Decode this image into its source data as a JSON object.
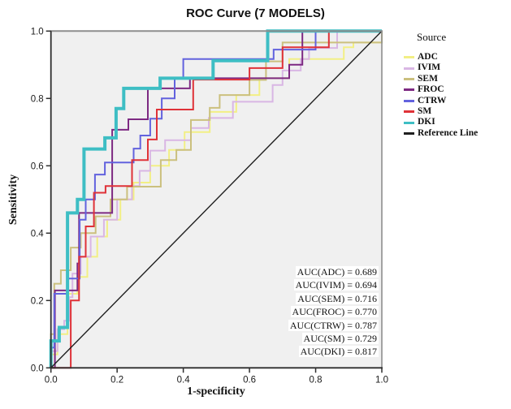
{
  "title": "ROC Curve (7 MODELS)",
  "axes": {
    "x_label": "1-specificity",
    "y_label": "Sensitivity",
    "x_ticks": [
      "0.0",
      "0.2",
      "0.4",
      "0.6",
      "0.8",
      "1.0"
    ],
    "y_ticks": [
      "0.0",
      "0.2",
      "0.4",
      "0.6",
      "0.8",
      "1.0"
    ]
  },
  "legend": {
    "title": "Source",
    "items": [
      {
        "label": "ADC",
        "color": "#F2EF85"
      },
      {
        "label": "IVIM",
        "color": "#D9B6E4"
      },
      {
        "label": "SEM",
        "color": "#CBC07E"
      },
      {
        "label": "FROC",
        "color": "#7D2982"
      },
      {
        "label": "CTRW",
        "color": "#6262DE"
      },
      {
        "label": "SM",
        "color": "#DF3238"
      },
      {
        "label": "DKI",
        "color": "#3EBEC4"
      },
      {
        "label": "Reference Line",
        "color": "#1F1F1F"
      }
    ]
  },
  "auc_annotations": [
    "AUC(ADC) = 0.689",
    "AUC(IVIM) = 0.694",
    "AUC(SEM) = 0.716",
    "AUC(FROC) = 0.770",
    "AUC(CTRW) = 0.787",
    "AUC(SM) = 0.729",
    "AUC(DKI) = 0.817"
  ],
  "colors": {
    "plot_bg": "#F0F0F0",
    "outer_border": "#8E8E8E",
    "axis": "#2E2E2E",
    "tick_label": "#1A1A1A"
  },
  "chart_data": {
    "type": "line",
    "subtype": "roc-step-curves",
    "title": "ROC Curve (7 MODELS)",
    "xlabel": "1-specificity",
    "ylabel": "Sensitivity",
    "xlim": [
      0,
      1
    ],
    "ylim": [
      0,
      1
    ],
    "grid": false,
    "legend_position": "right",
    "series": [
      {
        "name": "ADC",
        "auc": 0.689,
        "color": "#F2EF85",
        "width": 2,
        "points": [
          [
            0,
            0
          ],
          [
            0,
            0.04
          ],
          [
            0.02,
            0.04
          ],
          [
            0.02,
            0.1
          ],
          [
            0.05,
            0.1
          ],
          [
            0.05,
            0.22
          ],
          [
            0.08,
            0.22
          ],
          [
            0.08,
            0.27
          ],
          [
            0.11,
            0.27
          ],
          [
            0.11,
            0.33
          ],
          [
            0.14,
            0.33
          ],
          [
            0.14,
            0.39
          ],
          [
            0.17,
            0.39
          ],
          [
            0.17,
            0.44
          ],
          [
            0.21,
            0.44
          ],
          [
            0.21,
            0.5
          ],
          [
            0.25,
            0.5
          ],
          [
            0.25,
            0.55
          ],
          [
            0.3,
            0.55
          ],
          [
            0.3,
            0.6
          ],
          [
            0.357,
            0.6
          ],
          [
            0.357,
            0.647
          ],
          [
            0.404,
            0.647
          ],
          [
            0.404,
            0.7
          ],
          [
            0.48,
            0.7
          ],
          [
            0.48,
            0.76
          ],
          [
            0.56,
            0.76
          ],
          [
            0.56,
            0.81
          ],
          [
            0.63,
            0.81
          ],
          [
            0.63,
            0.86
          ],
          [
            0.72,
            0.86
          ],
          [
            0.72,
            0.917
          ],
          [
            0.885,
            0.917
          ],
          [
            0.885,
            0.952
          ],
          [
            0.914,
            0.952
          ],
          [
            0.914,
            0.966
          ],
          [
            1,
            0.966
          ],
          [
            1,
            1
          ]
        ]
      },
      {
        "name": "IVIM",
        "auc": 0.694,
        "color": "#D9B6E4",
        "width": 2,
        "points": [
          [
            0,
            0
          ],
          [
            0,
            0.05
          ],
          [
            0.02,
            0.05
          ],
          [
            0.02,
            0.115
          ],
          [
            0.04,
            0.115
          ],
          [
            0.04,
            0.14
          ],
          [
            0.055,
            0.14
          ],
          [
            0.055,
            0.21
          ],
          [
            0.065,
            0.21
          ],
          [
            0.065,
            0.28
          ],
          [
            0.09,
            0.28
          ],
          [
            0.09,
            0.33
          ],
          [
            0.12,
            0.33
          ],
          [
            0.12,
            0.39
          ],
          [
            0.16,
            0.39
          ],
          [
            0.16,
            0.44
          ],
          [
            0.2,
            0.44
          ],
          [
            0.2,
            0.5
          ],
          [
            0.245,
            0.5
          ],
          [
            0.245,
            0.54
          ],
          [
            0.268,
            0.54
          ],
          [
            0.268,
            0.585
          ],
          [
            0.3,
            0.585
          ],
          [
            0.3,
            0.645
          ],
          [
            0.345,
            0.645
          ],
          [
            0.345,
            0.676
          ],
          [
            0.423,
            0.676
          ],
          [
            0.423,
            0.712
          ],
          [
            0.477,
            0.712
          ],
          [
            0.477,
            0.742
          ],
          [
            0.55,
            0.742
          ],
          [
            0.55,
            0.79
          ],
          [
            0.67,
            0.79
          ],
          [
            0.67,
            0.84
          ],
          [
            0.7,
            0.84
          ],
          [
            0.7,
            0.883
          ],
          [
            0.755,
            0.883
          ],
          [
            0.755,
            0.917
          ],
          [
            0.78,
            0.917
          ],
          [
            0.78,
            0.95
          ],
          [
            0.865,
            0.95
          ],
          [
            0.865,
            1
          ],
          [
            1,
            1
          ]
        ]
      },
      {
        "name": "SEM",
        "auc": 0.716,
        "color": "#CBC07E",
        "width": 2,
        "points": [
          [
            0,
            0
          ],
          [
            0,
            0.1
          ],
          [
            0.01,
            0.1
          ],
          [
            0.01,
            0.25
          ],
          [
            0.03,
            0.25
          ],
          [
            0.03,
            0.29
          ],
          [
            0.06,
            0.29
          ],
          [
            0.06,
            0.357
          ],
          [
            0.09,
            0.357
          ],
          [
            0.09,
            0.4
          ],
          [
            0.135,
            0.4
          ],
          [
            0.135,
            0.45
          ],
          [
            0.18,
            0.45
          ],
          [
            0.18,
            0.5
          ],
          [
            0.23,
            0.5
          ],
          [
            0.23,
            0.538
          ],
          [
            0.332,
            0.538
          ],
          [
            0.332,
            0.617
          ],
          [
            0.379,
            0.617
          ],
          [
            0.379,
            0.647
          ],
          [
            0.423,
            0.647
          ],
          [
            0.423,
            0.736
          ],
          [
            0.48,
            0.736
          ],
          [
            0.48,
            0.772
          ],
          [
            0.51,
            0.772
          ],
          [
            0.51,
            0.81
          ],
          [
            0.6,
            0.81
          ],
          [
            0.6,
            0.855
          ],
          [
            0.65,
            0.855
          ],
          [
            0.65,
            0.91
          ],
          [
            0.7,
            0.91
          ],
          [
            0.7,
            0.966
          ],
          [
            1,
            0.966
          ],
          [
            1,
            1
          ]
        ]
      },
      {
        "name": "FROC",
        "auc": 0.77,
        "color": "#7D2982",
        "width": 2,
        "points": [
          [
            0,
            0
          ],
          [
            0.012,
            0
          ],
          [
            0.012,
            0.23
          ],
          [
            0.08,
            0.23
          ],
          [
            0.08,
            0.31
          ],
          [
            0.085,
            0.31
          ],
          [
            0.085,
            0.46
          ],
          [
            0.185,
            0.46
          ],
          [
            0.185,
            0.707
          ],
          [
            0.234,
            0.707
          ],
          [
            0.234,
            0.738
          ],
          [
            0.293,
            0.738
          ],
          [
            0.293,
            0.83
          ],
          [
            0.42,
            0.83
          ],
          [
            0.42,
            0.86
          ],
          [
            0.72,
            0.86
          ],
          [
            0.72,
            0.9
          ],
          [
            0.76,
            0.9
          ],
          [
            0.76,
            1
          ],
          [
            1,
            1
          ]
        ]
      },
      {
        "name": "CTRW",
        "auc": 0.787,
        "color": "#6262DE",
        "width": 2,
        "points": [
          [
            0,
            0
          ],
          [
            0,
            0.06
          ],
          [
            0.01,
            0.06
          ],
          [
            0.01,
            0.22
          ],
          [
            0.05,
            0.22
          ],
          [
            0.05,
            0.265
          ],
          [
            0.087,
            0.265
          ],
          [
            0.087,
            0.44
          ],
          [
            0.105,
            0.44
          ],
          [
            0.105,
            0.5
          ],
          [
            0.133,
            0.5
          ],
          [
            0.133,
            0.574
          ],
          [
            0.163,
            0.574
          ],
          [
            0.163,
            0.61
          ],
          [
            0.25,
            0.61
          ],
          [
            0.25,
            0.651
          ],
          [
            0.27,
            0.651
          ],
          [
            0.27,
            0.69
          ],
          [
            0.3,
            0.69
          ],
          [
            0.3,
            0.74
          ],
          [
            0.335,
            0.74
          ],
          [
            0.335,
            0.8
          ],
          [
            0.374,
            0.8
          ],
          [
            0.374,
            0.86
          ],
          [
            0.4,
            0.86
          ],
          [
            0.4,
            0.917
          ],
          [
            0.673,
            0.917
          ],
          [
            0.673,
            0.945
          ],
          [
            0.8,
            0.945
          ],
          [
            0.8,
            1
          ],
          [
            1,
            1
          ]
        ]
      },
      {
        "name": "SM",
        "auc": 0.729,
        "color": "#DF3238",
        "width": 2,
        "points": [
          [
            0,
            0
          ],
          [
            0.06,
            0
          ],
          [
            0.06,
            0.2
          ],
          [
            0.085,
            0.2
          ],
          [
            0.085,
            0.33
          ],
          [
            0.105,
            0.33
          ],
          [
            0.105,
            0.42
          ],
          [
            0.13,
            0.42
          ],
          [
            0.13,
            0.52
          ],
          [
            0.165,
            0.52
          ],
          [
            0.165,
            0.54
          ],
          [
            0.245,
            0.54
          ],
          [
            0.245,
            0.617
          ],
          [
            0.293,
            0.617
          ],
          [
            0.293,
            0.678
          ],
          [
            0.32,
            0.678
          ],
          [
            0.32,
            0.767
          ],
          [
            0.43,
            0.767
          ],
          [
            0.43,
            0.856
          ],
          [
            0.6,
            0.856
          ],
          [
            0.6,
            0.89
          ],
          [
            0.7,
            0.89
          ],
          [
            0.7,
            0.952
          ],
          [
            0.84,
            0.952
          ],
          [
            0.84,
            1
          ],
          [
            1,
            1
          ]
        ]
      },
      {
        "name": "DKI",
        "auc": 0.817,
        "color": "#3EBEC4",
        "width": 4,
        "points": [
          [
            0,
            0
          ],
          [
            0,
            0.08
          ],
          [
            0.025,
            0.08
          ],
          [
            0.025,
            0.12
          ],
          [
            0.05,
            0.12
          ],
          [
            0.05,
            0.46
          ],
          [
            0.08,
            0.46
          ],
          [
            0.08,
            0.5
          ],
          [
            0.1,
            0.5
          ],
          [
            0.1,
            0.65
          ],
          [
            0.163,
            0.65
          ],
          [
            0.163,
            0.683
          ],
          [
            0.197,
            0.683
          ],
          [
            0.197,
            0.77
          ],
          [
            0.22,
            0.77
          ],
          [
            0.22,
            0.83
          ],
          [
            0.33,
            0.83
          ],
          [
            0.33,
            0.86
          ],
          [
            0.49,
            0.86
          ],
          [
            0.49,
            0.912
          ],
          [
            0.655,
            0.912
          ],
          [
            0.655,
            1
          ],
          [
            1,
            1
          ]
        ]
      }
    ],
    "reference_line": {
      "name": "Reference Line",
      "color": "#1F1F1F",
      "width": 1.4,
      "points": [
        [
          0,
          0
        ],
        [
          1,
          1
        ]
      ]
    }
  }
}
